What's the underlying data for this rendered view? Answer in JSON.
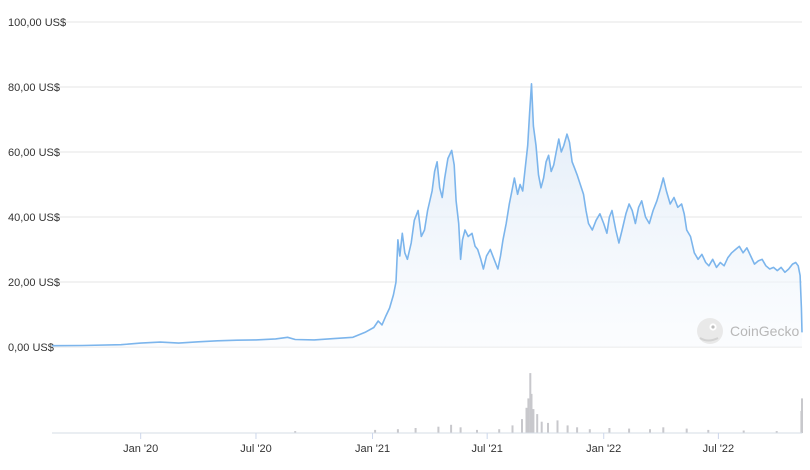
{
  "chart_data": {
    "type": "area",
    "title": "",
    "xlabel": "",
    "ylabel": "",
    "colors": {
      "line": "#7cb5ec",
      "area_top": "#dde9f6",
      "area_bottom": "#f7fafe",
      "volume": "#c8c8cc",
      "grid": "#e6e6e6",
      "text": "#333333"
    },
    "y_ticks": [
      "0,00 US$",
      "20,00 US$",
      "40,00 US$",
      "60,00 US$",
      "80,00 US$",
      "100,00 US$"
    ],
    "ylim": [
      0,
      100
    ],
    "x_ticks": [
      {
        "date": "2020-01-01",
        "label": "Jan '20"
      },
      {
        "date": "2020-07-01",
        "label": "Jul '20"
      },
      {
        "date": "2021-01-01",
        "label": "Jan '21"
      },
      {
        "date": "2021-07-01",
        "label": "Jul '21"
      },
      {
        "date": "2022-01-01",
        "label": "Jan '22"
      },
      {
        "date": "2022-07-01",
        "label": "Jul '22"
      }
    ],
    "xlim": [
      "2019-08-14",
      "2022-11-10"
    ],
    "series": [
      {
        "points": [
          [
            "2019-08-14",
            0.4
          ],
          [
            "2019-10-01",
            0.45
          ],
          [
            "2019-12-01",
            0.7
          ],
          [
            "2020-01-01",
            1.2
          ],
          [
            "2020-02-01",
            1.5
          ],
          [
            "2020-03-01",
            1.2
          ],
          [
            "2020-04-01",
            1.6
          ],
          [
            "2020-05-01",
            1.9
          ],
          [
            "2020-06-01",
            2.1
          ],
          [
            "2020-07-01",
            2.2
          ],
          [
            "2020-08-01",
            2.5
          ],
          [
            "2020-08-20",
            3.0
          ],
          [
            "2020-09-01",
            2.3
          ],
          [
            "2020-10-01",
            2.2
          ],
          [
            "2020-11-01",
            2.6
          ],
          [
            "2020-12-01",
            3.0
          ],
          [
            "2020-12-20",
            4.5
          ],
          [
            "2021-01-03",
            6.0
          ],
          [
            "2021-01-10",
            8.0
          ],
          [
            "2021-01-16",
            6.8
          ],
          [
            "2021-01-22",
            9.5
          ],
          [
            "2021-01-28",
            12.0
          ],
          [
            "2021-02-03",
            16.0
          ],
          [
            "2021-02-07",
            20.0
          ],
          [
            "2021-02-10",
            33.0
          ],
          [
            "2021-02-13",
            28.0
          ],
          [
            "2021-02-17",
            35.0
          ],
          [
            "2021-02-21",
            29.0
          ],
          [
            "2021-02-25",
            27.0
          ],
          [
            "2021-03-03",
            32.0
          ],
          [
            "2021-03-08",
            39.0
          ],
          [
            "2021-03-14",
            42.0
          ],
          [
            "2021-03-19",
            34.0
          ],
          [
            "2021-03-24",
            36.0
          ],
          [
            "2021-03-29",
            42.0
          ],
          [
            "2021-04-05",
            48.0
          ],
          [
            "2021-04-09",
            54.0
          ],
          [
            "2021-04-13",
            57.0
          ],
          [
            "2021-04-17",
            49.0
          ],
          [
            "2021-04-21",
            46.0
          ],
          [
            "2021-04-25",
            52.0
          ],
          [
            "2021-04-30",
            58.0
          ],
          [
            "2021-05-06",
            60.5
          ],
          [
            "2021-05-10",
            56.0
          ],
          [
            "2021-05-13",
            45.0
          ],
          [
            "2021-05-17",
            38.0
          ],
          [
            "2021-05-20",
            27.0
          ],
          [
            "2021-05-23",
            33.0
          ],
          [
            "2021-05-27",
            36.0
          ],
          [
            "2021-06-01",
            34.0
          ],
          [
            "2021-06-07",
            35.0
          ],
          [
            "2021-06-12",
            31.0
          ],
          [
            "2021-06-16",
            30.0
          ],
          [
            "2021-06-21",
            27.0
          ],
          [
            "2021-06-25",
            24.0
          ],
          [
            "2021-06-30",
            28.0
          ],
          [
            "2021-07-06",
            30.0
          ],
          [
            "2021-07-12",
            27.0
          ],
          [
            "2021-07-18",
            24.0
          ],
          [
            "2021-07-22",
            28.0
          ],
          [
            "2021-07-26",
            33.0
          ],
          [
            "2021-07-31",
            38.0
          ],
          [
            "2021-08-05",
            44.0
          ],
          [
            "2021-08-09",
            48.0
          ],
          [
            "2021-08-13",
            52.0
          ],
          [
            "2021-08-18",
            47.0
          ],
          [
            "2021-08-22",
            50.0
          ],
          [
            "2021-08-26",
            48.0
          ],
          [
            "2021-08-30",
            55.0
          ],
          [
            "2021-09-03",
            62.0
          ],
          [
            "2021-09-06",
            72.0
          ],
          [
            "2021-09-09",
            81.0
          ],
          [
            "2021-09-12",
            68.0
          ],
          [
            "2021-09-16",
            62.0
          ],
          [
            "2021-09-20",
            53.0
          ],
          [
            "2021-09-24",
            49.0
          ],
          [
            "2021-09-28",
            52.0
          ],
          [
            "2021-10-02",
            57.0
          ],
          [
            "2021-10-06",
            59.0
          ],
          [
            "2021-10-10",
            54.0
          ],
          [
            "2021-10-14",
            56.0
          ],
          [
            "2021-10-18",
            60.0
          ],
          [
            "2021-10-22",
            64.0
          ],
          [
            "2021-10-26",
            60.0
          ],
          [
            "2021-10-30",
            62.0
          ],
          [
            "2021-11-04",
            65.5
          ],
          [
            "2021-11-08",
            63.0
          ],
          [
            "2021-11-12",
            57.0
          ],
          [
            "2021-11-16",
            55.0
          ],
          [
            "2021-11-20",
            53.0
          ],
          [
            "2021-11-25",
            50.0
          ],
          [
            "2021-11-30",
            47.0
          ],
          [
            "2021-12-04",
            42.0
          ],
          [
            "2021-12-08",
            38.0
          ],
          [
            "2021-12-14",
            36.0
          ],
          [
            "2021-12-20",
            39.0
          ],
          [
            "2021-12-26",
            41.0
          ],
          [
            "2022-01-01",
            38.0
          ],
          [
            "2022-01-06",
            35.0
          ],
          [
            "2022-01-10",
            40.0
          ],
          [
            "2022-01-14",
            42.0
          ],
          [
            "2022-01-20",
            36.0
          ],
          [
            "2022-01-25",
            32.0
          ],
          [
            "2022-01-30",
            36.0
          ],
          [
            "2022-02-05",
            41.0
          ],
          [
            "2022-02-10",
            44.0
          ],
          [
            "2022-02-15",
            42.0
          ],
          [
            "2022-02-20",
            38.0
          ],
          [
            "2022-02-25",
            43.0
          ],
          [
            "2022-03-02",
            45.0
          ],
          [
            "2022-03-08",
            40.0
          ],
          [
            "2022-03-14",
            38.0
          ],
          [
            "2022-03-20",
            42.0
          ],
          [
            "2022-03-26",
            45.0
          ],
          [
            "2022-04-01",
            49.0
          ],
          [
            "2022-04-05",
            52.0
          ],
          [
            "2022-04-10",
            48.0
          ],
          [
            "2022-04-16",
            44.0
          ],
          [
            "2022-04-22",
            46.0
          ],
          [
            "2022-04-28",
            43.0
          ],
          [
            "2022-05-04",
            44.0
          ],
          [
            "2022-05-08",
            41.0
          ],
          [
            "2022-05-12",
            36.0
          ],
          [
            "2022-05-18",
            34.0
          ],
          [
            "2022-05-24",
            29.0
          ],
          [
            "2022-05-30",
            27.0
          ],
          [
            "2022-06-05",
            28.5
          ],
          [
            "2022-06-11",
            26.0
          ],
          [
            "2022-06-16",
            25.0
          ],
          [
            "2022-06-22",
            27.0
          ],
          [
            "2022-06-28",
            24.5
          ],
          [
            "2022-07-04",
            26.0
          ],
          [
            "2022-07-10",
            25.0
          ],
          [
            "2022-07-16",
            27.5
          ],
          [
            "2022-07-22",
            29.0
          ],
          [
            "2022-07-28",
            30.0
          ],
          [
            "2022-08-03",
            31.0
          ],
          [
            "2022-08-09",
            29.0
          ],
          [
            "2022-08-15",
            30.5
          ],
          [
            "2022-08-21",
            28.0
          ],
          [
            "2022-08-27",
            25.5
          ],
          [
            "2022-09-02",
            26.5
          ],
          [
            "2022-09-08",
            27.0
          ],
          [
            "2022-09-14",
            25.0
          ],
          [
            "2022-09-20",
            24.0
          ],
          [
            "2022-09-26",
            24.5
          ],
          [
            "2022-10-02",
            23.5
          ],
          [
            "2022-10-08",
            24.5
          ],
          [
            "2022-10-14",
            23.0
          ],
          [
            "2022-10-20",
            24.0
          ],
          [
            "2022-10-26",
            25.5
          ],
          [
            "2022-10-31",
            26.0
          ],
          [
            "2022-11-04",
            25.0
          ],
          [
            "2022-11-07",
            22.0
          ],
          [
            "2022-11-09",
            12.0
          ],
          [
            "2022-11-10",
            4.5
          ]
        ]
      }
    ],
    "volume": [
      [
        "2020-09-01",
        0.03
      ],
      [
        "2021-01-05",
        0.05
      ],
      [
        "2021-02-10",
        0.06
      ],
      [
        "2021-03-10",
        0.08
      ],
      [
        "2021-04-15",
        0.1
      ],
      [
        "2021-05-05",
        0.13
      ],
      [
        "2021-05-20",
        0.09
      ],
      [
        "2021-06-15",
        0.05
      ],
      [
        "2021-07-20",
        0.06
      ],
      [
        "2021-08-10",
        0.12
      ],
      [
        "2021-08-25",
        0.22
      ],
      [
        "2021-09-01",
        0.4
      ],
      [
        "2021-09-04",
        0.55
      ],
      [
        "2021-09-07",
        0.95
      ],
      [
        "2021-09-09",
        0.62
      ],
      [
        "2021-09-12",
        0.38
      ],
      [
        "2021-09-18",
        0.3
      ],
      [
        "2021-09-25",
        0.18
      ],
      [
        "2021-10-05",
        0.16
      ],
      [
        "2021-10-20",
        0.2
      ],
      [
        "2021-11-05",
        0.12
      ],
      [
        "2021-11-20",
        0.09
      ],
      [
        "2021-12-10",
        0.06
      ],
      [
        "2022-01-10",
        0.08
      ],
      [
        "2022-02-10",
        0.07
      ],
      [
        "2022-03-15",
        0.06
      ],
      [
        "2022-04-05",
        0.09
      ],
      [
        "2022-05-12",
        0.07
      ],
      [
        "2022-06-15",
        0.05
      ],
      [
        "2022-08-10",
        0.04
      ],
      [
        "2022-10-01",
        0.03
      ],
      [
        "2022-11-09",
        0.35
      ],
      [
        "2022-11-10",
        0.55
      ]
    ],
    "watermark": "CoinGecko",
    "grid": true,
    "legend": "none"
  }
}
